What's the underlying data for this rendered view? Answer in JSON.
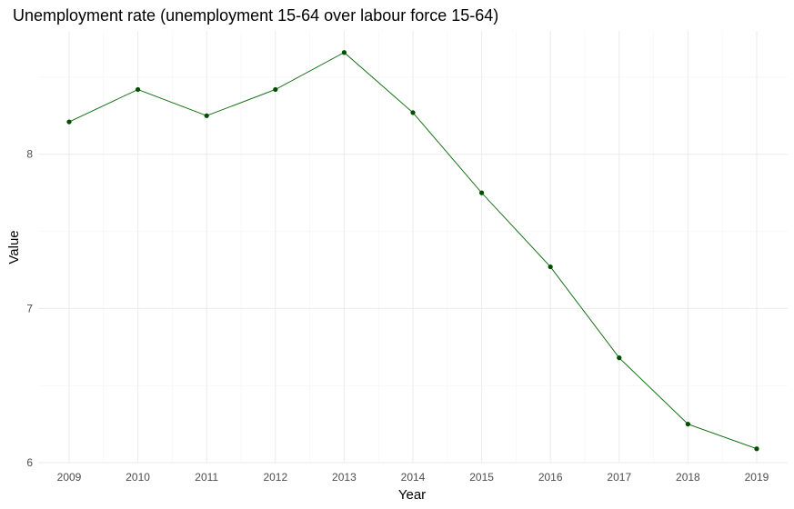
{
  "chart_data": {
    "type": "line",
    "title": "Unemployment rate (unemployment 15-64 over labour force 15-64)",
    "xlabel": "Year",
    "ylabel": "Value",
    "x": [
      2009,
      2010,
      2011,
      2012,
      2013,
      2014,
      2015,
      2016,
      2017,
      2018,
      2019
    ],
    "series": [
      {
        "values": [
          8.21,
          8.42,
          8.25,
          8.42,
          8.66,
          8.27,
          7.75,
          7.27,
          6.68,
          6.25,
          6.09
        ]
      }
    ],
    "xticks": [
      "2009",
      "2010",
      "2011",
      "2012",
      "2013",
      "2014",
      "2015",
      "2016",
      "2017",
      "2018",
      "2019"
    ],
    "yticks": [
      "6",
      "7",
      "8"
    ],
    "ytick_values": [
      6,
      7,
      8
    ],
    "ylim": [
      6.0,
      8.8
    ],
    "xlim": [
      2008.55,
      2019.45
    ],
    "grid": true,
    "legend": "none",
    "colors": {
      "line": "#006400",
      "point": "#004d00"
    }
  }
}
